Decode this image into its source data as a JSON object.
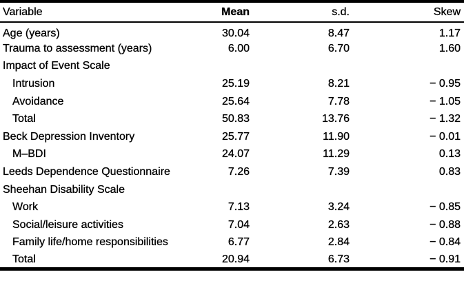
{
  "page": {
    "background_color": "#ffffff",
    "text_color": "#000000",
    "description": "Descriptive statistics table from an academic paper"
  },
  "table": {
    "columns": [
      "Variable",
      "Mean",
      "s.d.",
      "Skew"
    ],
    "rows": [
      {
        "variable": "Age (years)",
        "indent": false,
        "mean": "30.04",
        "sd": "8.47",
        "skew": "1.17"
      },
      {
        "variable": "Trauma to assessment (years)",
        "indent": false,
        "mean": "6.00",
        "sd": "6.70",
        "skew": "1.60"
      },
      {
        "variable": "Impact of Event Scale",
        "indent": false,
        "mean": "",
        "sd": "",
        "skew": ""
      },
      {
        "variable": "Intrusion",
        "indent": true,
        "mean": "25.19",
        "sd": "8.21",
        "skew": "− 0.95"
      },
      {
        "variable": "Avoidance",
        "indent": true,
        "mean": "25.64",
        "sd": "7.78",
        "skew": "− 1.05"
      },
      {
        "variable": "Total",
        "indent": true,
        "mean": "50.83",
        "sd": "13.76",
        "skew": "− 1.32"
      },
      {
        "variable": "Beck Depression Inventory",
        "indent": false,
        "mean": "25.77",
        "sd": "11.90",
        "skew": "− 0.01"
      },
      {
        "variable": "M–BDI",
        "indent": true,
        "mean": "24.07",
        "sd": "11.29",
        "skew": "0.13"
      },
      {
        "variable": "Leeds Dependence Questionnaire",
        "indent": false,
        "mean": "7.26",
        "sd": "7.39",
        "skew": "0.83"
      },
      {
        "variable": "Sheehan Disability Scale",
        "indent": false,
        "mean": "",
        "sd": "",
        "skew": ""
      },
      {
        "variable": "Work",
        "indent": true,
        "mean": "7.13",
        "sd": "3.24",
        "skew": "− 0.85"
      },
      {
        "variable": "Social/leisure activities",
        "indent": true,
        "mean": "7.04",
        "sd": "2.63",
        "skew": "− 0.88"
      },
      {
        "variable": "Family life/home responsibilities",
        "indent": true,
        "mean": "6.77",
        "sd": "2.84",
        "skew": "− 0.84"
      },
      {
        "variable": "Total",
        "indent": true,
        "mean": "20.94",
        "sd": "6.73",
        "skew": "− 0.91"
      }
    ]
  }
}
